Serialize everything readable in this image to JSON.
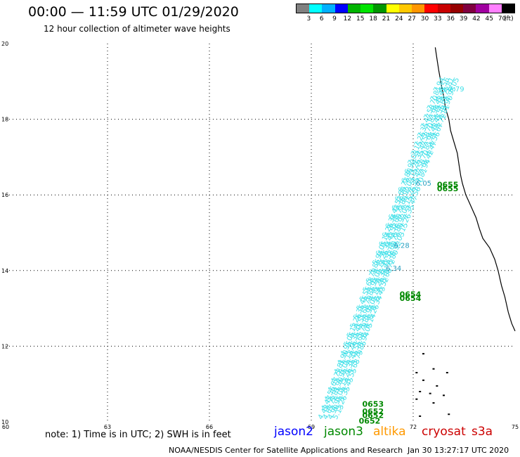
{
  "header": {
    "title": "00:00 — 11:59 UTC 01/29/2020",
    "subtitle": "12 hour collection of altimeter wave heights"
  },
  "legend": {
    "unit": "(ft)",
    "colors": [
      "#808080",
      "#00ffff",
      "#00b0ff",
      "#0000ff",
      "#00b400",
      "#00e400",
      "#009600",
      "#ffff00",
      "#ffc800",
      "#ff9600",
      "#ff0000",
      "#c80000",
      "#960000",
      "#800040",
      "#a000a0",
      "#ff80ff",
      "#000000"
    ],
    "labels": [
      "3",
      "6",
      "9",
      "12",
      "15",
      "18",
      "21",
      "24",
      "27",
      "30",
      "33",
      "36",
      "39",
      "42",
      "45",
      "70"
    ]
  },
  "chart_data": {
    "type": "scatter",
    "xlim": [
      60,
      75
    ],
    "ylim": [
      10,
      20
    ],
    "x_ticks": [
      "60",
      "63",
      "66",
      "69",
      "72",
      "75"
    ],
    "y_ticks": [
      "10",
      "12",
      "14",
      "16",
      "18",
      "20"
    ],
    "grid": true,
    "swh_labels": [
      "4.42",
      "4.47",
      "4.56",
      "4.67",
      "4.72",
      "4.81",
      "4.90",
      "4.95",
      "5.05",
      "5.13",
      "5.26",
      "5.35",
      "5.45",
      "5.55",
      "5.68",
      "5.79",
      "5.86",
      "5.94",
      "6.05",
      "6.14",
      "6.26",
      "6.34",
      "6.43",
      "6.52",
      "6.60",
      "6.72",
      "6.80",
      "6.92",
      "7.03",
      "7.15",
      "7.26",
      "7.35",
      "7.47",
      "7.58",
      "7.70",
      "7.81",
      "7.94"
    ],
    "swh_track": {
      "lon_start": 69.6,
      "lat_start": 10.05,
      "lon_end": 73.0,
      "lat_end": 18.7
    },
    "swh_labels_top": [
      "7.79",
      "6.05",
      "6.28",
      "6.34"
    ],
    "time_labels": [
      {
        "text": "0655",
        "lon": 72.7,
        "lat": 16.2
      },
      {
        "text": "0655",
        "lon": 72.7,
        "lat": 16.1
      },
      {
        "text": "0654",
        "lon": 71.6,
        "lat": 13.3
      },
      {
        "text": "0654",
        "lon": 71.6,
        "lat": 13.2
      },
      {
        "text": "0653",
        "lon": 70.5,
        "lat": 10.4
      },
      {
        "text": "0652",
        "lon": 70.5,
        "lat": 10.2
      },
      {
        "text": "0652",
        "lon": 70.5,
        "lat": 10.1
      },
      {
        "text": "0652",
        "lon": 70.4,
        "lat": 9.95
      }
    ],
    "coastline": [
      [
        72.65,
        19.9
      ],
      [
        72.7,
        19.6
      ],
      [
        72.75,
        19.3
      ],
      [
        72.8,
        19.05
      ],
      [
        72.85,
        18.8
      ],
      [
        72.9,
        18.6
      ],
      [
        72.95,
        18.3
      ],
      [
        73.05,
        18.0
      ],
      [
        73.1,
        17.7
      ],
      [
        73.2,
        17.4
      ],
      [
        73.3,
        17.1
      ],
      [
        73.35,
        16.8
      ],
      [
        73.4,
        16.5
      ],
      [
        73.45,
        16.3
      ],
      [
        73.55,
        16.0
      ],
      [
        73.65,
        15.8
      ],
      [
        73.75,
        15.6
      ],
      [
        73.85,
        15.4
      ],
      [
        73.95,
        15.1
      ],
      [
        74.05,
        14.85
      ],
      [
        74.25,
        14.6
      ],
      [
        74.4,
        14.3
      ],
      [
        74.5,
        14.0
      ],
      [
        74.6,
        13.6
      ],
      [
        74.7,
        13.3
      ],
      [
        74.8,
        12.9
      ],
      [
        74.9,
        12.6
      ],
      [
        75.0,
        12.4
      ]
    ],
    "islands": [
      [
        72.3,
        11.8
      ],
      [
        72.6,
        11.4
      ],
      [
        72.1,
        11.3
      ],
      [
        73.0,
        11.3
      ],
      [
        72.3,
        11.1
      ],
      [
        72.7,
        10.95
      ],
      [
        72.2,
        10.8
      ],
      [
        72.5,
        10.75
      ],
      [
        72.9,
        10.7
      ],
      [
        72.1,
        10.6
      ],
      [
        72.6,
        10.5
      ],
      [
        73.05,
        10.2
      ],
      [
        72.2,
        10.15
      ]
    ]
  },
  "footer": {
    "note": "note: 1) Time is in UTC; 2) SWH is in feet",
    "sat_jason2": "jason2",
    "sat_jason3": "jason3",
    "sat_altika": "altika",
    "sat_cryosat": "cryosat",
    "sat_s3a": "s3a",
    "credit": "NOAA/NESDIS Center for Satellite Applications and Research",
    "timestamp": "Jan 30 13:27:17 UTC 2020"
  },
  "colors": {
    "swh": "#40e0e8",
    "time": "#008800",
    "grid": "#000000",
    "jason2": "#0000ff",
    "jason3": "#008800",
    "altika": "#ff9900",
    "cryosat": "#cc0000",
    "s3a": "#cc0000"
  }
}
